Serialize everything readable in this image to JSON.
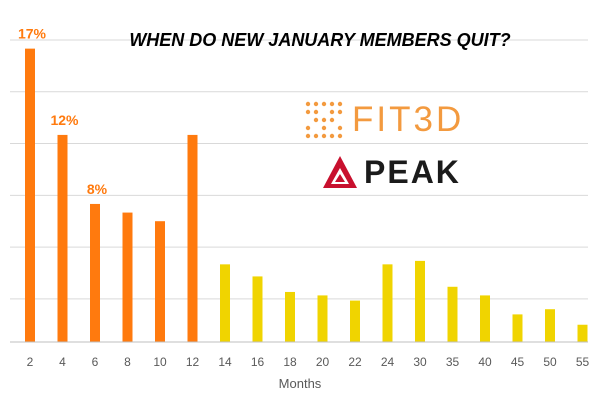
{
  "chart_data": {
    "type": "bar",
    "title": "WHEN DO NEW JANUARY MEMBERS QUIT?",
    "xlabel": "Months",
    "ylabel": "",
    "ylim": [
      0,
      17.5
    ],
    "grid": true,
    "categories": [
      "2",
      "4",
      "6",
      "8",
      "10",
      "12",
      "14",
      "16",
      "18",
      "20",
      "22",
      "24",
      "30",
      "35",
      "40",
      "45",
      "50",
      "55"
    ],
    "values": [
      17.0,
      12.0,
      8.0,
      7.5,
      7.0,
      12.0,
      4.5,
      3.8,
      2.9,
      2.7,
      2.4,
      4.5,
      4.7,
      3.2,
      2.7,
      1.6,
      1.9,
      1.0
    ],
    "data_labels": [
      "17%",
      "12%",
      "8%",
      "",
      "",
      "",
      "",
      "",
      "",
      "",
      "",
      "",
      "",
      "",
      "",
      "",
      "",
      ""
    ],
    "colors": {
      "first_year": "#ff7a0e",
      "later": "#f0d400",
      "grid": "#d9d9d9",
      "axis": "#bfbfbf",
      "tick_text": "#595959"
    }
  },
  "logos": {
    "fit3d": {
      "text": "FIT3D",
      "color": "#f39a3f"
    },
    "peak": {
      "text": "PEAK",
      "color": "#c8102e"
    }
  }
}
